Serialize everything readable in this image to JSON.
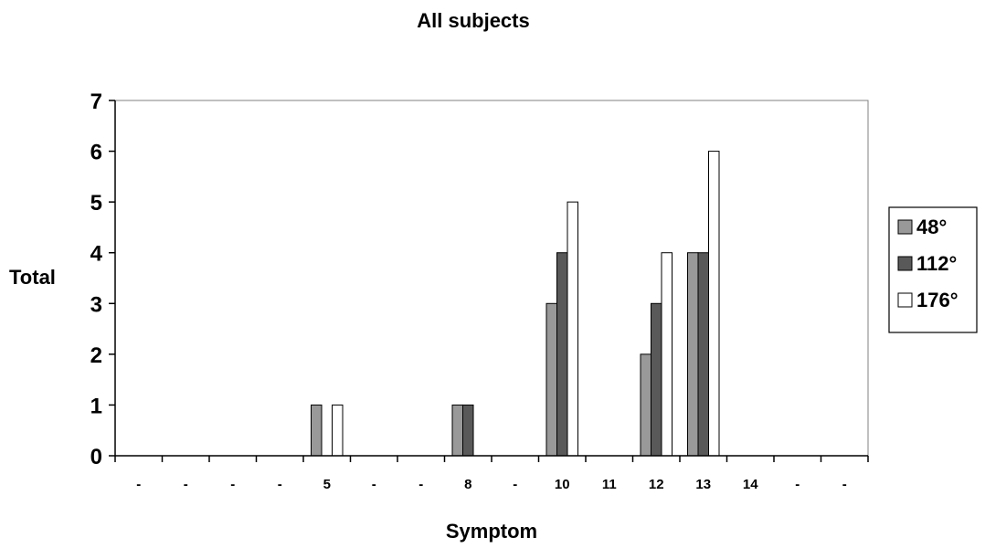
{
  "chart_data": {
    "type": "bar",
    "title": "All subjects",
    "xlabel": "Symptom",
    "ylabel": "Total",
    "ylim": [
      0,
      7
    ],
    "yticks": [
      0,
      1,
      2,
      3,
      4,
      5,
      6,
      7
    ],
    "grid": false,
    "legend_position": "right",
    "categories": [
      "-",
      "-",
      "-",
      "-",
      "5",
      "-",
      "-",
      "8",
      "-",
      "10",
      "11",
      "12",
      "13",
      "14",
      "-",
      "-"
    ],
    "series": [
      {
        "name": "48°",
        "color": "#999999",
        "values": [
          0,
          0,
          0,
          0,
          1,
          0,
          0,
          1,
          0,
          3,
          0,
          2,
          4,
          0,
          0,
          0
        ]
      },
      {
        "name": "112°",
        "color": "#595959",
        "values": [
          0,
          0,
          0,
          0,
          0,
          0,
          0,
          1,
          0,
          4,
          0,
          3,
          4,
          0,
          0,
          0
        ]
      },
      {
        "name": "176°",
        "color": "#ffffff",
        "values": [
          0,
          0,
          0,
          0,
          1,
          0,
          0,
          0,
          0,
          5,
          0,
          4,
          6,
          0,
          0,
          0
        ]
      }
    ]
  }
}
